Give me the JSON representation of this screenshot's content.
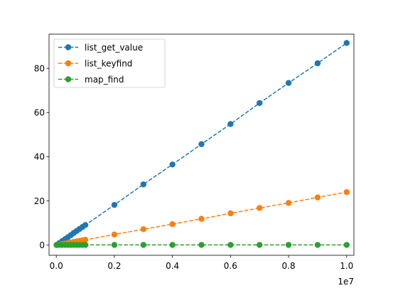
{
  "chart_data": {
    "type": "line",
    "title": "",
    "xlabel": "",
    "ylabel": "",
    "x_offset_label": "1e7",
    "xlim": [
      -250000,
      10250000
    ],
    "ylim": [
      -4.6,
      95.5
    ],
    "xticks": [
      0,
      2000000,
      4000000,
      6000000,
      8000000,
      10000000
    ],
    "xtick_labels": [
      "0.0",
      "0.2",
      "0.4",
      "0.6",
      "0.8",
      "1.0"
    ],
    "yticks": [
      0,
      20,
      40,
      60,
      80
    ],
    "ytick_labels": [
      "0",
      "20",
      "40",
      "60",
      "80"
    ],
    "grid": false,
    "legend_position": "upper-left",
    "x": [
      10000,
      100000,
      200000,
      300000,
      400000,
      500000,
      600000,
      700000,
      800000,
      900000,
      1000000,
      2000000,
      3000000,
      4000000,
      5000000,
      6000000,
      7000000,
      8000000,
      9000000,
      10000000
    ],
    "series": [
      {
        "name": "list_get_value",
        "color": "#1f77b4",
        "values": [
          0.1,
          0.9,
          1.8,
          2.7,
          3.6,
          4.5,
          5.5,
          6.4,
          7.3,
          8.2,
          9.1,
          18.2,
          27.5,
          36.5,
          45.7,
          54.8,
          64.3,
          73.4,
          82.3,
          91.5
        ]
      },
      {
        "name": "list_keyfind",
        "color": "#ff7f0e",
        "values": [
          0.02,
          0.24,
          0.48,
          0.72,
          0.96,
          1.2,
          1.44,
          1.68,
          1.92,
          2.16,
          2.4,
          4.8,
          7.2,
          9.5,
          11.9,
          14.4,
          16.8,
          19.1,
          21.6,
          24.0
        ]
      },
      {
        "name": "map_find",
        "color": "#2ca02c",
        "values": [
          0.1,
          0.1,
          0.1,
          0.1,
          0.1,
          0.1,
          0.1,
          0.1,
          0.1,
          0.1,
          0.1,
          0.1,
          0.1,
          0.1,
          0.1,
          0.1,
          0.1,
          0.1,
          0.1,
          0.1
        ]
      }
    ]
  }
}
